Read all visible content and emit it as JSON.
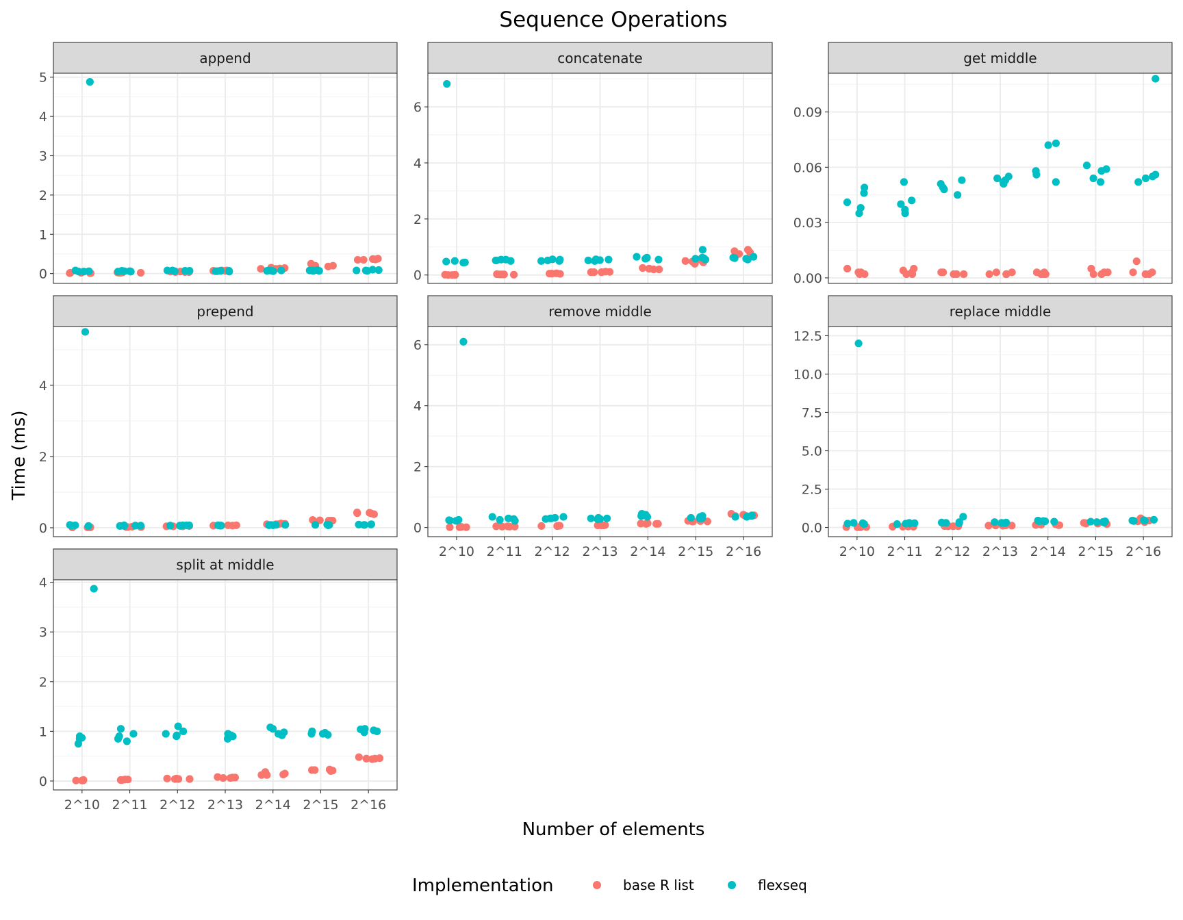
{
  "chart_data": {
    "type": "scatter",
    "title": "Sequence Operations",
    "xlabel": "Number of elements",
    "ylabel": "Time (ms)",
    "categories": [
      "2^10",
      "2^11",
      "2^12",
      "2^13",
      "2^14",
      "2^15",
      "2^16"
    ],
    "legend": {
      "title": "Implementation",
      "position": "bottom",
      "entries": [
        {
          "name": "base R list",
          "color": "#F8766D"
        },
        {
          "name": "flexseq",
          "color": "#00BFC4"
        }
      ]
    },
    "panels": [
      {
        "name": "append",
        "ylim": [
          -0.25,
          5.1
        ],
        "yticks": [
          0,
          1,
          2,
          3,
          4,
          5
        ],
        "ytick_labels": [
          "0",
          "1",
          "2",
          "3",
          "4",
          "5"
        ],
        "series": [
          {
            "name": "base R list",
            "values": [
              [
                0.01,
                0.02,
                0.01,
                0.02,
                0.01
              ],
              [
                0.02,
                0.03,
                0.02,
                0.03,
                0.02
              ],
              [
                0.04,
                0.05,
                0.04,
                0.05,
                0.04
              ],
              [
                0.07,
                0.08,
                0.07,
                0.08,
                0.07
              ],
              [
                0.12,
                0.15,
                0.13,
                0.14,
                0.12
              ],
              [
                0.15,
                0.25,
                0.2,
                0.18,
                0.2
              ],
              [
                0.38,
                0.35,
                0.37,
                0.36,
                0.35
              ]
            ]
          },
          {
            "name": "flexseq",
            "values": [
              [
                4.88,
                0.05,
                0.06,
                0.05,
                0.08
              ],
              [
                0.07,
                0.06,
                0.05,
                0.06,
                0.05
              ],
              [
                0.08,
                0.07,
                0.08,
                0.06,
                0.07
              ],
              [
                0.07,
                0.06,
                0.07,
                0.06,
                0.05
              ],
              [
                0.08,
                0.07,
                0.06,
                0.08,
                0.07
              ],
              [
                0.09,
                0.07,
                0.08,
                0.07,
                0.08
              ],
              [
                0.1,
                0.08,
                0.07,
                0.09,
                0.08
              ]
            ]
          }
        ]
      },
      {
        "name": "concatenate",
        "ylim": [
          -0.3,
          7.2
        ],
        "yticks": [
          0,
          2,
          4,
          6
        ],
        "ytick_labels": [
          "0",
          "2",
          "4",
          "6"
        ],
        "series": [
          {
            "name": "base R list",
            "values": [
              [
                0.0,
                0.01,
                0.0,
                0.01,
                0.0
              ],
              [
                0.02,
                0.03,
                0.02,
                0.01,
                0.02
              ],
              [
                0.05,
                0.06,
                0.05,
                0.04,
                0.05
              ],
              [
                0.1,
                0.12,
                0.1,
                0.11,
                0.1
              ],
              [
                0.2,
                0.25,
                0.22,
                0.2,
                0.23
              ],
              [
                0.45,
                0.4,
                0.5,
                0.55,
                0.48
              ],
              [
                0.85,
                0.7,
                0.9,
                0.75,
                0.8
              ]
            ]
          },
          {
            "name": "flexseq",
            "values": [
              [
                6.82,
                0.5,
                0.45,
                0.48,
                0.44
              ],
              [
                0.55,
                0.52,
                0.5,
                0.55,
                0.52
              ],
              [
                0.5,
                0.55,
                0.52,
                0.56,
                0.5
              ],
              [
                0.52,
                0.55,
                0.5,
                0.56,
                0.53
              ],
              [
                0.6,
                0.65,
                0.55,
                0.62,
                0.58
              ],
              [
                0.6,
                0.55,
                0.9,
                0.62,
                0.58
              ],
              [
                0.6,
                0.58,
                0.65,
                0.55,
                0.62
              ]
            ]
          }
        ]
      },
      {
        "name": "get middle",
        "ylim": [
          -0.003,
          0.111
        ],
        "yticks": [
          0,
          0.03,
          0.06,
          0.09
        ],
        "ytick_labels": [
          "0.00",
          "0.03",
          "0.06",
          "0.09"
        ],
        "series": [
          {
            "name": "base R list",
            "values": [
              [
                0.002,
                0.005,
                0.003,
                0.002,
                0.003
              ],
              [
                0.002,
                0.005,
                0.003,
                0.002,
                0.004
              ],
              [
                0.002,
                0.003,
                0.002,
                0.003,
                0.002
              ],
              [
                0.002,
                0.003,
                0.002,
                0.003,
                0.002
              ],
              [
                0.002,
                0.003,
                0.002,
                0.003,
                0.002
              ],
              [
                0.002,
                0.005,
                0.003,
                0.002,
                0.003
              ],
              [
                0.002,
                0.009,
                0.003,
                0.002,
                0.003
              ]
            ]
          },
          {
            "name": "flexseq",
            "values": [
              [
                0.049,
                0.041,
                0.038,
                0.035,
                0.046
              ],
              [
                0.052,
                0.042,
                0.04,
                0.037,
                0.035
              ],
              [
                0.053,
                0.051,
                0.049,
                0.045,
                0.048
              ],
              [
                0.052,
                0.054,
                0.055,
                0.051,
                0.053
              ],
              [
                0.073,
                0.072,
                0.058,
                0.056,
                0.052
              ],
              [
                0.058,
                0.054,
                0.052,
                0.061,
                0.059
              ],
              [
                0.108,
                0.055,
                0.056,
                0.054,
                0.052
              ]
            ]
          }
        ]
      },
      {
        "name": "prepend",
        "ylim": [
          -0.25,
          5.65
        ],
        "yticks": [
          0,
          2,
          4
        ],
        "ytick_labels": [
          "0",
          "2",
          "4"
        ],
        "series": [
          {
            "name": "base R list",
            "values": [
              [
                0.01,
                0.02,
                0.01,
                0.02,
                0.01
              ],
              [
                0.02,
                0.03,
                0.02,
                0.03,
                0.02
              ],
              [
                0.04,
                0.05,
                0.04,
                0.05,
                0.04
              ],
              [
                0.06,
                0.07,
                0.06,
                0.07,
                0.06
              ],
              [
                0.1,
                0.11,
                0.1,
                0.12,
                0.1
              ],
              [
                0.2,
                0.22,
                0.2,
                0.21,
                0.2
              ],
              [
                0.42,
                0.38,
                0.4,
                0.43,
                0.41
              ]
            ]
          },
          {
            "name": "flexseq",
            "values": [
              [
                5.5,
                0.06,
                0.07,
                0.05,
                0.08
              ],
              [
                0.06,
                0.07,
                0.05,
                0.06,
                0.05
              ],
              [
                0.07,
                0.06,
                0.07,
                0.06,
                0.07
              ],
              [
                0.06,
                0.07,
                0.06,
                0.07,
                0.06
              ],
              [
                0.08,
                0.07,
                0.08,
                0.07,
                0.08
              ],
              [
                0.09,
                0.07,
                0.08,
                0.07,
                0.08
              ],
              [
                0.1,
                0.08,
                0.09,
                0.08,
                0.09
              ]
            ]
          }
        ]
      },
      {
        "name": "remove middle",
        "ylim": [
          -0.3,
          6.6
        ],
        "yticks": [
          0,
          2,
          4,
          6
        ],
        "ytick_labels": [
          "0",
          "2",
          "4",
          "6"
        ],
        "series": [
          {
            "name": "base R list",
            "values": [
              [
                0.01,
                0.02,
                0.01,
                0.02,
                0.01
              ],
              [
                0.03,
                0.04,
                0.03,
                0.04,
                0.03
              ],
              [
                0.05,
                0.06,
                0.05,
                0.06,
                0.05
              ],
              [
                0.07,
                0.08,
                0.07,
                0.08,
                0.07
              ],
              [
                0.12,
                0.13,
                0.12,
                0.14,
                0.12
              ],
              [
                0.2,
                0.22,
                0.2,
                0.21,
                0.2
              ],
              [
                0.4,
                0.45,
                0.38,
                0.42,
                0.4
              ]
            ]
          },
          {
            "name": "flexseq",
            "values": [
              [
                6.1,
                0.25,
                0.22,
                0.24,
                0.23
              ],
              [
                0.25,
                0.3,
                0.35,
                0.22,
                0.28
              ],
              [
                0.28,
                0.32,
                0.3,
                0.35,
                0.3
              ],
              [
                0.28,
                0.3,
                0.32,
                0.27,
                0.3
              ],
              [
                0.35,
                0.45,
                0.4,
                0.38,
                0.42
              ],
              [
                0.3,
                0.35,
                0.32,
                0.38,
                0.3
              ],
              [
                0.35,
                0.38,
                0.4,
                0.35,
                0.37
              ]
            ]
          }
        ]
      },
      {
        "name": "replace middle",
        "ylim": [
          -0.6,
          13.1
        ],
        "yticks": [
          0,
          2.5,
          5,
          7.5,
          10,
          12.5
        ],
        "ytick_labels": [
          "0.0",
          "2.5",
          "5.0",
          "7.5",
          "10.0",
          "12.5"
        ],
        "series": [
          {
            "name": "base R list",
            "values": [
              [
                0.02,
                0.03,
                0.02,
                0.03,
                0.02
              ],
              [
                0.05,
                0.06,
                0.05,
                0.06,
                0.05
              ],
              [
                0.08,
                0.1,
                0.08,
                0.09,
                0.08
              ],
              [
                0.12,
                0.13,
                0.12,
                0.14,
                0.12
              ],
              [
                0.15,
                0.18,
                0.15,
                0.2,
                0.16
              ],
              [
                0.25,
                0.3,
                0.22,
                0.28,
                0.25
              ],
              [
                0.6,
                0.35,
                0.5,
                0.4,
                0.45
              ]
            ]
          },
          {
            "name": "flexseq",
            "values": [
              [
                12.0,
                0.25,
                0.28,
                0.22,
                0.3
              ],
              [
                0.25,
                0.28,
                0.3,
                0.22,
                0.26
              ],
              [
                0.7,
                0.35,
                0.3,
                0.28,
                0.32
              ],
              [
                0.3,
                0.32,
                0.35,
                0.28,
                0.3
              ],
              [
                0.4,
                0.42,
                0.38,
                0.45,
                0.4
              ],
              [
                0.35,
                0.38,
                0.32,
                0.4,
                0.36
              ],
              [
                0.45,
                0.48,
                0.42,
                0.5,
                0.44
              ]
            ]
          }
        ]
      },
      {
        "name": "split at middle",
        "ylim": [
          -0.18,
          4.05
        ],
        "yticks": [
          0,
          1,
          2,
          3,
          4
        ],
        "ytick_labels": [
          "0",
          "1",
          "2",
          "3",
          "4"
        ],
        "series": [
          {
            "name": "base R list",
            "values": [
              [
                0.01,
                0.02,
                0.01,
                0.02,
                0.01
              ],
              [
                0.02,
                0.03,
                0.02,
                0.03,
                0.02
              ],
              [
                0.04,
                0.05,
                0.04,
                0.05,
                0.04
              ],
              [
                0.06,
                0.07,
                0.06,
                0.08,
                0.07
              ],
              [
                0.12,
                0.18,
                0.13,
                0.15,
                0.12
              ],
              [
                0.22,
                0.2,
                0.22,
                0.21,
                0.23
              ],
              [
                0.45,
                0.48,
                0.44,
                0.46,
                0.45
              ]
            ]
          },
          {
            "name": "flexseq",
            "values": [
              [
                3.87,
                0.75,
                0.85,
                0.87,
                0.9
              ],
              [
                0.85,
                0.8,
                1.05,
                0.95,
                0.9
              ],
              [
                0.95,
                1.0,
                1.1,
                0.9,
                0.92
              ],
              [
                0.9,
                0.95,
                0.85,
                0.92,
                0.88
              ],
              [
                0.98,
                1.05,
                0.92,
                1.08,
                0.95
              ],
              [
                0.95,
                1.0,
                0.93,
                0.97,
                0.95
              ],
              [
                1.0,
                1.05,
                0.98,
                1.02,
                1.04
              ]
            ]
          }
        ]
      }
    ]
  }
}
